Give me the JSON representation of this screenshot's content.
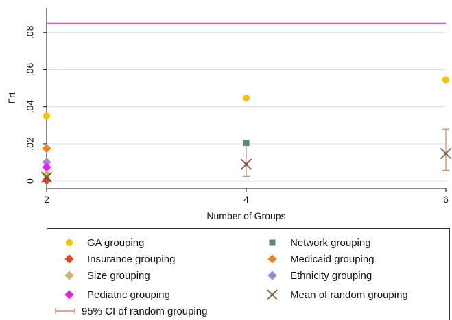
{
  "chart_data": {
    "type": "scatter",
    "xlabel": "Number of Groups",
    "ylabel": "Frt",
    "x_ticks": [
      2,
      4,
      6
    ],
    "y_ticks": [
      0,
      0.02,
      0.04,
      0.06,
      0.08
    ],
    "y_tick_labels": [
      "0",
      ".02",
      ".04",
      ".06",
      ".08"
    ],
    "xlim": [
      2,
      6
    ],
    "ylim": [
      -0.004,
      0.093
    ],
    "grid": true,
    "reference_line": {
      "y": 0.085,
      "color": "#d6336c"
    },
    "series": [
      {
        "key": "ga",
        "name": "GA grouping",
        "marker": "circle",
        "color": "#f5c400",
        "points": [
          [
            2,
            0.035
          ],
          [
            4,
            0.0447
          ],
          [
            6,
            0.0545
          ]
        ]
      },
      {
        "key": "network",
        "name": "Network grouping",
        "marker": "square",
        "color": "#5e877c",
        "points": [
          [
            4,
            0.0205
          ]
        ]
      },
      {
        "key": "insurance",
        "name": "Insurance grouping",
        "marker": "diamond",
        "color": "#e0441b",
        "points": [
          [
            2,
            0.0005
          ]
        ]
      },
      {
        "key": "medicaid",
        "name": "Medicaid grouping",
        "marker": "diamond",
        "color": "#f0821e",
        "points": [
          [
            2,
            0.0175
          ]
        ]
      },
      {
        "key": "size",
        "name": "Size grouping",
        "marker": "diamond",
        "color": "#c9b56e",
        "points": [
          [
            2,
            0.0035
          ]
        ]
      },
      {
        "key": "ethnicity",
        "name": "Ethnicity grouping",
        "marker": "diamond",
        "color": "#9d8ad6",
        "points": [
          [
            2,
            0.0102
          ]
        ]
      },
      {
        "key": "pediatric",
        "name": "Pediatric grouping",
        "marker": "diamond",
        "color": "#f21cf2",
        "points": [
          [
            2,
            0.0075
          ]
        ]
      },
      {
        "key": "random_mean",
        "name": "Mean of random grouping",
        "marker": "x",
        "color": "#7a4d2a",
        "points": [
          [
            2,
            0.002
          ],
          [
            4,
            0.009
          ],
          [
            6,
            0.0148
          ]
        ]
      },
      {
        "key": "random_ci",
        "name": "95% CI of random grouping",
        "marker": "errorbar",
        "color": "#d98a6a",
        "intervals": [
          [
            2,
            0.0005,
            0.0035
          ],
          [
            4,
            0.0025,
            0.0195
          ],
          [
            6,
            0.0058,
            0.028
          ]
        ]
      }
    ]
  }
}
